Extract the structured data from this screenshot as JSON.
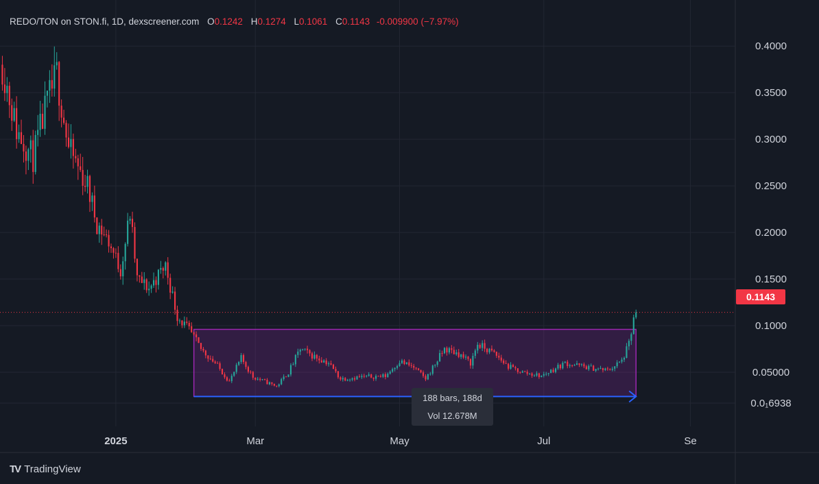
{
  "header": {
    "symbol": "REDO/TON on STON.fi, 1D, dexscreener.com",
    "open_label": "O",
    "open": "0.1242",
    "high_label": "H",
    "high": "0.1274",
    "low_label": "L",
    "low": "0.1061",
    "close_label": "C",
    "close": "0.1143",
    "change": "-0.009900 (−7.97%)"
  },
  "price_tag": "0.1143",
  "range_tooltip": {
    "bars": "188 bars, 188d",
    "volume": "Vol 12.678M"
  },
  "logo": {
    "mark": "TV",
    "text": "TradingView"
  },
  "colors": {
    "up": "#26a69a",
    "down": "#f23645",
    "box": "#9c27b0",
    "arrow": "#2962ff",
    "background": "#151a24",
    "grid": "#232733"
  },
  "chart_data": {
    "type": "candlestick",
    "ylim": [
      0.0169,
      0.42
    ],
    "y_ticks": [
      {
        "v": 0.4,
        "label": "0.4000"
      },
      {
        "v": 0.35,
        "label": "0.3500"
      },
      {
        "v": 0.3,
        "label": "0.3000"
      },
      {
        "v": 0.25,
        "label": "0.2500"
      },
      {
        "v": 0.2,
        "label": "0.2000"
      },
      {
        "v": 0.15,
        "label": "0.1500"
      },
      {
        "v": 0.1,
        "label": "0.1000"
      },
      {
        "v": 0.05,
        "label": "0.05000"
      },
      {
        "v": 0.0169,
        "label": "0.0₁6938"
      }
    ],
    "x_ticks": [
      {
        "date": "2025-01-01",
        "label": "2025",
        "bold": true
      },
      {
        "date": "2025-03-01",
        "label": "Mar"
      },
      {
        "date": "2025-05-01",
        "label": "May"
      },
      {
        "date": "2025-07-01",
        "label": "Jul"
      },
      {
        "date": "2025-09-01",
        "label": "Se"
      }
    ],
    "xlim": [
      "2024-11-13",
      "2025-09-20"
    ],
    "price_line": 0.1143,
    "measure_box": {
      "start": "2025-02-03",
      "end": "2025-08-09",
      "top": 0.096,
      "bottom": 0.024
    },
    "anchors": [
      {
        "date": "2024-11-14",
        "price": 0.38
      },
      {
        "date": "2024-11-20",
        "price": 0.31
      },
      {
        "date": "2024-11-27",
        "price": 0.28
      },
      {
        "date": "2024-12-02",
        "price": 0.33
      },
      {
        "date": "2024-12-07",
        "price": 0.37
      },
      {
        "date": "2024-12-12",
        "price": 0.29
      },
      {
        "date": "2024-12-20",
        "price": 0.25
      },
      {
        "date": "2024-12-24",
        "price": 0.21
      },
      {
        "date": "2024-12-29",
        "price": 0.19
      },
      {
        "date": "2025-01-03",
        "price": 0.16
      },
      {
        "date": "2025-01-07",
        "price": 0.22
      },
      {
        "date": "2025-01-10",
        "price": 0.15
      },
      {
        "date": "2025-01-15",
        "price": 0.14
      },
      {
        "date": "2025-01-22",
        "price": 0.165
      },
      {
        "date": "2025-01-27",
        "price": 0.11
      },
      {
        "date": "2025-02-01",
        "price": 0.095
      },
      {
        "date": "2025-02-06",
        "price": 0.075
      },
      {
        "date": "2025-02-12",
        "price": 0.06
      },
      {
        "date": "2025-02-18",
        "price": 0.04
      },
      {
        "date": "2025-02-23",
        "price": 0.065
      },
      {
        "date": "2025-02-28",
        "price": 0.045
      },
      {
        "date": "2025-03-10",
        "price": 0.035
      },
      {
        "date": "2025-03-15",
        "price": 0.05
      },
      {
        "date": "2025-03-20",
        "price": 0.075
      },
      {
        "date": "2025-03-25",
        "price": 0.068
      },
      {
        "date": "2025-04-01",
        "price": 0.06
      },
      {
        "date": "2025-04-06",
        "price": 0.043
      },
      {
        "date": "2025-04-15",
        "price": 0.045
      },
      {
        "date": "2025-04-25",
        "price": 0.046
      },
      {
        "date": "2025-05-01",
        "price": 0.062
      },
      {
        "date": "2025-05-07",
        "price": 0.055
      },
      {
        "date": "2025-05-12",
        "price": 0.043
      },
      {
        "date": "2025-05-20",
        "price": 0.075
      },
      {
        "date": "2025-05-26",
        "price": 0.07
      },
      {
        "date": "2025-05-31",
        "price": 0.06
      },
      {
        "date": "2025-06-03",
        "price": 0.08
      },
      {
        "date": "2025-06-10",
        "price": 0.07
      },
      {
        "date": "2025-06-16",
        "price": 0.056
      },
      {
        "date": "2025-06-22",
        "price": 0.05
      },
      {
        "date": "2025-06-30",
        "price": 0.046
      },
      {
        "date": "2025-07-10",
        "price": 0.06
      },
      {
        "date": "2025-07-20",
        "price": 0.055
      },
      {
        "date": "2025-07-28",
        "price": 0.052
      },
      {
        "date": "2025-08-03",
        "price": 0.062
      },
      {
        "date": "2025-08-06",
        "price": 0.08
      },
      {
        "date": "2025-08-08",
        "price": 0.106
      },
      {
        "date": "2025-08-09",
        "price": 0.1143
      }
    ]
  }
}
